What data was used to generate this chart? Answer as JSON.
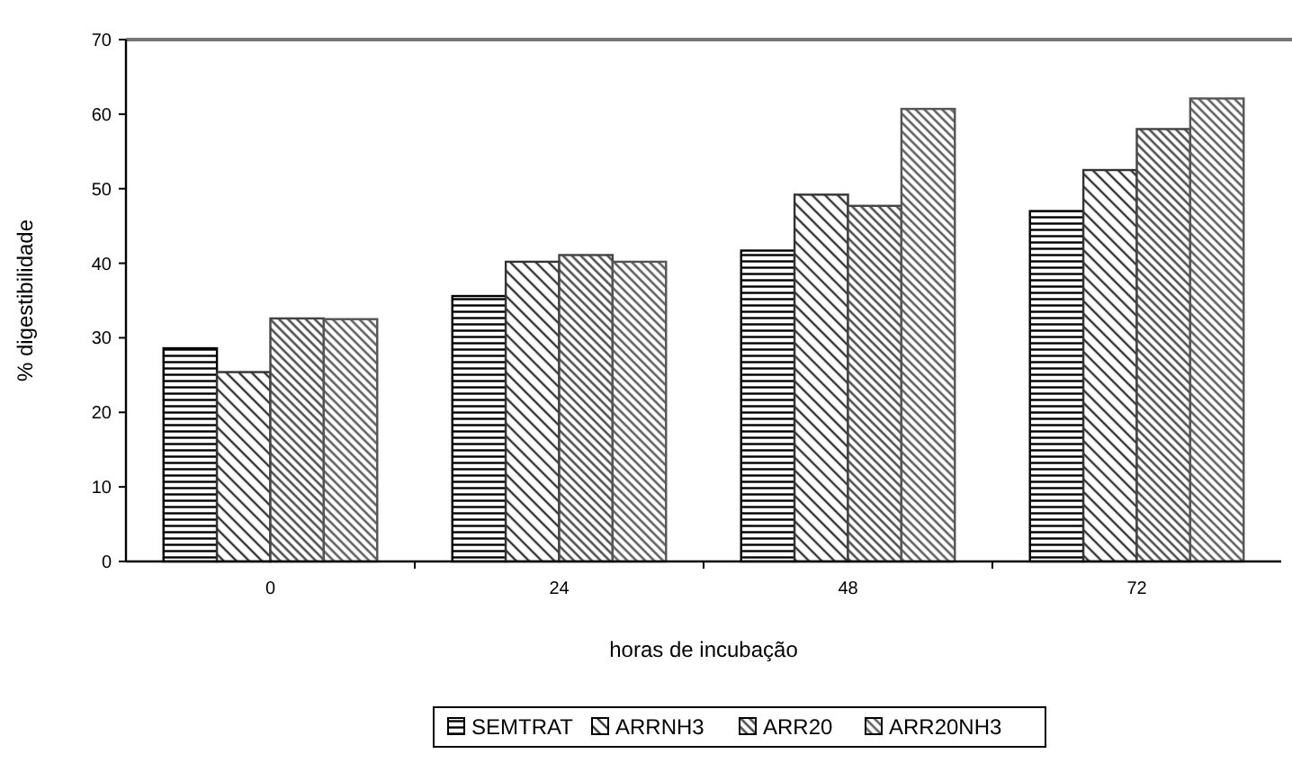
{
  "chart_data": {
    "type": "bar",
    "xlabel": "horas de incubação",
    "ylabel": "% digestibilidade",
    "categories": [
      "0",
      "24",
      "48",
      "72"
    ],
    "series": [
      {
        "name": "SEMTRAT",
        "color": "#000000",
        "values": [
          28.6,
          35.6,
          41.7,
          47.0
        ]
      },
      {
        "name": "ARRNH3",
        "color": "#333333",
        "values": [
          25.4,
          40.2,
          49.2,
          52.5
        ]
      },
      {
        "name": "ARR20",
        "color": "#444444",
        "values": [
          32.6,
          41.1,
          47.7,
          58.0
        ]
      },
      {
        "name": "ARR20NH3",
        "color": "#555555",
        "values": [
          32.5,
          40.2,
          60.7,
          62.1
        ]
      }
    ],
    "ylim": [
      0,
      70
    ],
    "yticks": [
      0,
      10,
      20,
      30,
      40,
      50,
      60,
      70
    ],
    "grid": false,
    "legend": "bottom"
  }
}
